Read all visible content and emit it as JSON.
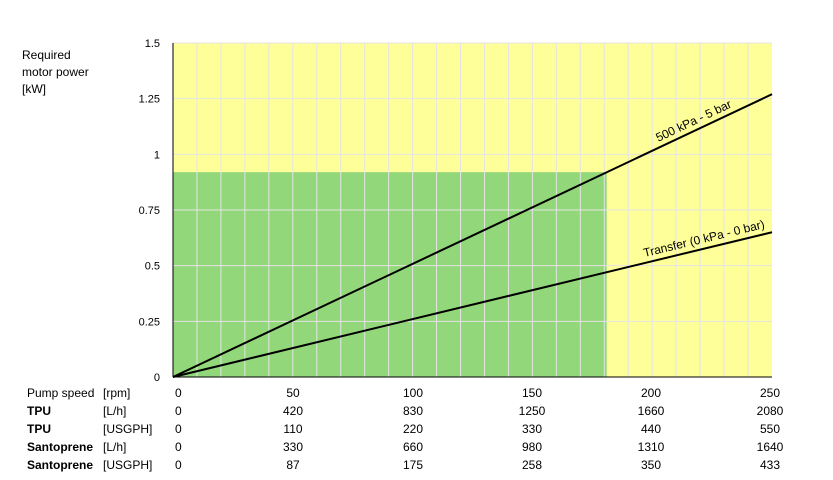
{
  "chart_data": {
    "type": "line",
    "ylabel": "Required\nmotor power\n[kW]",
    "xlim": [
      0,
      250
    ],
    "ylim": [
      0,
      1.5
    ],
    "yticks": [
      "0",
      "0.25",
      "0.5",
      "0.75",
      "1",
      "1.25",
      "1.5"
    ],
    "grid": true,
    "background_colors": {
      "plot": "#ffff99",
      "region": "#92d77a",
      "grid": "#e4e4e4"
    },
    "region": {
      "x_max": 181,
      "y_max": 0.92
    },
    "series": [
      {
        "name": "500 kPa - 5 bar",
        "x": [
          0,
          250
        ],
        "y": [
          0,
          1.27
        ],
        "color": "#000000"
      },
      {
        "name": "Transfer (0 kPa - 0 bar)",
        "x": [
          0,
          250
        ],
        "y": [
          0,
          0.65
        ],
        "color": "#000000"
      }
    ],
    "table": {
      "columns": [
        "0",
        "50",
        "100",
        "150",
        "200",
        "250"
      ],
      "rows": [
        {
          "name": "Pump speed",
          "unit": "[rpm]",
          "bold": false,
          "values": [
            "0",
            "50",
            "100",
            "150",
            "200",
            "250"
          ]
        },
        {
          "name": "TPU",
          "unit": "[L/h]",
          "bold": true,
          "values": [
            "0",
            "420",
            "830",
            "1250",
            "1660",
            "2080"
          ]
        },
        {
          "name": "TPU",
          "unit": "[USGPH]",
          "bold": true,
          "values": [
            "0",
            "110",
            "220",
            "330",
            "440",
            "550"
          ]
        },
        {
          "name": "Santoprene",
          "unit": "[L/h]",
          "bold": true,
          "values": [
            "0",
            "330",
            "660",
            "980",
            "1310",
            "1640"
          ]
        },
        {
          "name": "Santoprene",
          "unit": "[USGPH]",
          "bold": true,
          "values": [
            "0",
            "87",
            "175",
            "258",
            "350",
            "433"
          ]
        }
      ]
    }
  }
}
